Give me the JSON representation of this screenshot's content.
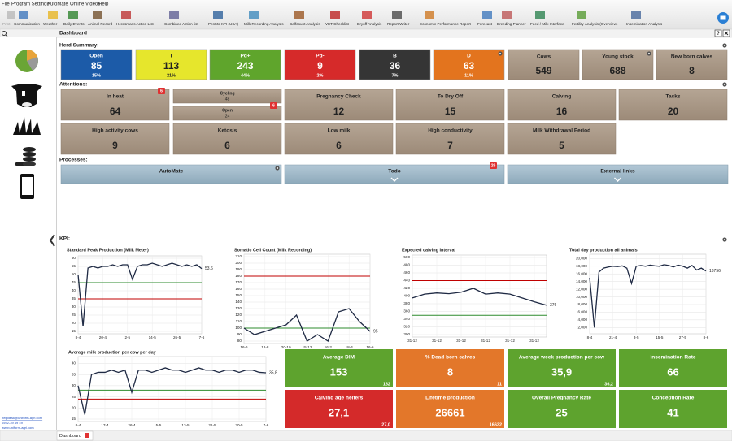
{
  "menu": [
    "File",
    "Program Settings",
    "AutoMate",
    "Online Videos",
    "Help"
  ],
  "toolbar": [
    "Print",
    "Communication",
    "Weather",
    "Daily Events",
    "Animal Record",
    "Herdsmans Action List",
    "Combined Action list",
    "PenMo KPI (USA)",
    "Milk Recording Analysis",
    "Calfcount Analysis",
    "VET Checklist",
    "Dryoff Analysis",
    "Report Writer",
    "Economic Performance Report",
    "Forecast",
    "Breeding Planner",
    "Feed / Milk Interface",
    "Fertility Analysis (Overview)",
    "Insemination Analysis"
  ],
  "tab_title": "Dashboard",
  "herd_summary": {
    "title": "Herd Summary:",
    "tiles": [
      {
        "label": "Open",
        "value": 85,
        "percent": "15%",
        "color": "#1c5ba8"
      },
      {
        "label": "I",
        "value": 113,
        "percent": "21%",
        "color": "#e6e62c",
        "text_color": "#222222"
      },
      {
        "label": "Pd+",
        "value": 243,
        "percent": "44%",
        "color": "#5fa52c"
      },
      {
        "label": "Pd-",
        "value": 9,
        "percent": "2%",
        "color": "#d62a2a"
      },
      {
        "label": "B",
        "value": 36,
        "percent": "7%",
        "color": "#353535"
      },
      {
        "label": "D",
        "value": 63,
        "percent": "11%",
        "color": "#e3741e"
      }
    ],
    "totals": [
      {
        "label": "Cows",
        "value": 549
      },
      {
        "label": "Young stock",
        "value": 688
      },
      {
        "label": "New born calves",
        "value": 8
      }
    ]
  },
  "attentions": {
    "title": "Attentions:",
    "tiles": [
      {
        "label": "In heat",
        "value": 64,
        "badge": 6
      },
      {
        "split": [
          {
            "label": "Cycling",
            "value": 48
          },
          {
            "label": "Open",
            "value": 24
          }
        ],
        "badge": 6
      },
      {
        "label": "Pregnancy Check",
        "value": 12
      },
      {
        "label": "To Dry Off",
        "value": 15
      },
      {
        "label": "Calving",
        "value": 16
      },
      {
        "label": "Tasks",
        "value": 20
      },
      {
        "label": "High activity cows",
        "value": 9
      },
      {
        "label": "Ketosis",
        "value": 6
      },
      {
        "label": "Low milk",
        "value": 6
      },
      {
        "label": "High conductivity",
        "value": 7
      },
      {
        "label": "Milk Withdrawal Period",
        "value": 5
      }
    ]
  },
  "processes": {
    "title": "Processes:",
    "items": [
      {
        "label": "AutoMate"
      },
      {
        "label": "Todo",
        "badge": 29
      },
      {
        "label": "External links"
      }
    ]
  },
  "kpi": {
    "title": "KPI:",
    "tiles": [
      {
        "label": "Average DIM",
        "value": "153",
        "sub": "162",
        "color": "#5ea32e"
      },
      {
        "label": "% Dead born calves",
        "value": "8",
        "sub": "11",
        "color": "#e3772a"
      },
      {
        "label": "Average week production per cow",
        "value": "35,9",
        "sub": "36,2",
        "color": "#5ea32e"
      },
      {
        "label": "Insemination Rate",
        "value": "66",
        "color": "#5ea32e"
      },
      {
        "label": "Calving age heifers",
        "value": "27,1",
        "sub": "27,0",
        "color": "#d42a2a"
      },
      {
        "label": "Lifetime production",
        "value": "26661",
        "sub": "16632",
        "color": "#e3772a"
      },
      {
        "label": "Overall Pregnancy Rate",
        "value": "25",
        "color": "#5ea32e"
      },
      {
        "label": "Conception Rate",
        "value": "41",
        "color": "#5ea32e"
      }
    ]
  },
  "contact": [
    "helpdesk@uniform-agri.com",
    "0592-39 49 49",
    "www.uniform-agri.com"
  ],
  "chart_data": [
    {
      "type": "line",
      "title": "Standard Peak Production (Milk Meter)",
      "categories": [
        "8-4",
        null,
        null,
        null,
        null,
        "20-4",
        null,
        null,
        null,
        null,
        "2-5",
        null,
        null,
        null,
        null,
        "14-5",
        null,
        null,
        null,
        null,
        "26-5",
        null,
        null,
        null,
        null,
        "7-6"
      ],
      "series": [
        {
          "color": "#1f2a44",
          "values": [
            50,
            18,
            54,
            55,
            54,
            55,
            55,
            56,
            55,
            56,
            56,
            47,
            55,
            56,
            56,
            57,
            56,
            55,
            56,
            57,
            56,
            55,
            56,
            55,
            56,
            53.6
          ],
          "value_labels": [
            null,
            null,
            null,
            null,
            null,
            null,
            null,
            null,
            null,
            null,
            null,
            null,
            null,
            null,
            null,
            null,
            null,
            null,
            null,
            null,
            null,
            null,
            null,
            null,
            null,
            "53,6"
          ]
        }
      ],
      "ref_lines": [
        {
          "value": 35,
          "color": "#c00000"
        },
        {
          "value": 45,
          "color": "#2e8b2e"
        }
      ],
      "ylim": [
        15,
        60
      ],
      "yticks": [
        15,
        20,
        25,
        30,
        35,
        40,
        45,
        50,
        55,
        60
      ],
      "grid": true
    },
    {
      "type": "line",
      "title": "Somatic Cell Count (Milk Recording)",
      "categories": [
        "16-6",
        null,
        "18-8",
        null,
        "20-10",
        null,
        "15-12",
        null,
        "16-2",
        null,
        "18-4",
        null,
        "16-6"
      ],
      "series": [
        {
          "color": "#1f2a44",
          "values": [
            100,
            90,
            95,
            100,
            105,
            120,
            80,
            90,
            80,
            125,
            130,
            110,
            95
          ]
        }
      ],
      "ref_lines": [
        {
          "value": 180,
          "color": "#c00000"
        },
        {
          "value": 100,
          "color": "#2e8b2e"
        }
      ],
      "ylim": [
        80,
        210
      ],
      "yticks": [
        80,
        90,
        100,
        110,
        120,
        130,
        140,
        150,
        160,
        170,
        180,
        190,
        200,
        210
      ],
      "grid": true
    },
    {
      "type": "line",
      "title": "Expected calving interval",
      "categories": [
        "31-12",
        null,
        "31-12",
        null,
        "31-12",
        null,
        "31-12",
        null,
        "31-12",
        null,
        "31-12",
        null
      ],
      "series": [
        {
          "color": "#1f2a44",
          "values": [
            395,
            405,
            408,
            406,
            410,
            420,
            405,
            408,
            405,
            395,
            385,
            376
          ]
        }
      ],
      "ref_lines": [
        {
          "value": 440,
          "color": "#c00000"
        },
        {
          "value": 350,
          "color": "#2e8b2e"
        }
      ],
      "ylim": [
        300,
        500
      ],
      "yticks": [
        300,
        320,
        340,
        360,
        380,
        400,
        420,
        440,
        460,
        480,
        500
      ],
      "grid": true
    },
    {
      "type": "line",
      "title": "Total day production all animals",
      "categories": [
        "8-4",
        null,
        null,
        null,
        null,
        "21-4",
        null,
        null,
        null,
        null,
        "3-5",
        null,
        null,
        null,
        null,
        "15-5",
        null,
        null,
        null,
        null,
        "27-5",
        null,
        null,
        null,
        null,
        "8-6"
      ],
      "series": [
        {
          "color": "#1f2a44",
          "values": [
            15000,
            2000,
            16500,
            17500,
            17800,
            18000,
            17900,
            18100,
            17500,
            13500,
            18000,
            18200,
            18000,
            18300,
            18100,
            18000,
            18400,
            18200,
            17800,
            18300,
            18000,
            17500,
            18200,
            17000,
            17500,
            16756
          ]
        }
      ],
      "ref_lines": [],
      "ylim": [
        1000,
        20500
      ],
      "yticks": [
        {
          "value": 2000,
          "label": "2,000"
        },
        {
          "value": 4000,
          "label": "4,000"
        },
        {
          "value": 6000,
          "label": "6,000"
        },
        {
          "value": 8000,
          "label": "8,000"
        },
        {
          "value": 10000,
          "label": "10,000"
        },
        {
          "value": 12000,
          "label": "12,000"
        },
        {
          "value": 14000,
          "label": "14,000"
        },
        {
          "value": 16000,
          "label": "16,000"
        },
        {
          "value": 18000,
          "label": "18,000"
        },
        {
          "value": 20000,
          "label": "20,000"
        }
      ],
      "grid": true
    },
    {
      "type": "line",
      "title": "Average milk production per cow per day",
      "categories": [
        "8-4",
        null,
        null,
        null,
        "17-4",
        null,
        null,
        null,
        "26-4",
        null,
        null,
        null,
        "5-5",
        null,
        null,
        null,
        "13-5",
        null,
        null,
        null,
        "21-5",
        null,
        null,
        null,
        "30-5",
        null,
        null,
        null,
        "7-6"
      ],
      "series": [
        {
          "color": "#1f2a44",
          "values": [
            30,
            17,
            35,
            36,
            36,
            37,
            36,
            37,
            27,
            37,
            37,
            36,
            37,
            38,
            37,
            37,
            36,
            37,
            38,
            37,
            37,
            36,
            37,
            37,
            36,
            37,
            37,
            36,
            35.8
          ],
          "value_labels": [
            null,
            null,
            null,
            null,
            null,
            null,
            null,
            null,
            null,
            null,
            null,
            null,
            null,
            null,
            null,
            null,
            null,
            null,
            null,
            null,
            null,
            null,
            null,
            null,
            null,
            null,
            null,
            null,
            "35,8"
          ]
        }
      ],
      "ref_lines": [
        {
          "value": 24,
          "color": "#c00000"
        },
        {
          "value": 28,
          "color": "#2e8b2e"
        }
      ],
      "ylim": [
        15,
        42
      ],
      "yticks": [
        15,
        20,
        25,
        30,
        35,
        40
      ],
      "grid": true
    }
  ]
}
